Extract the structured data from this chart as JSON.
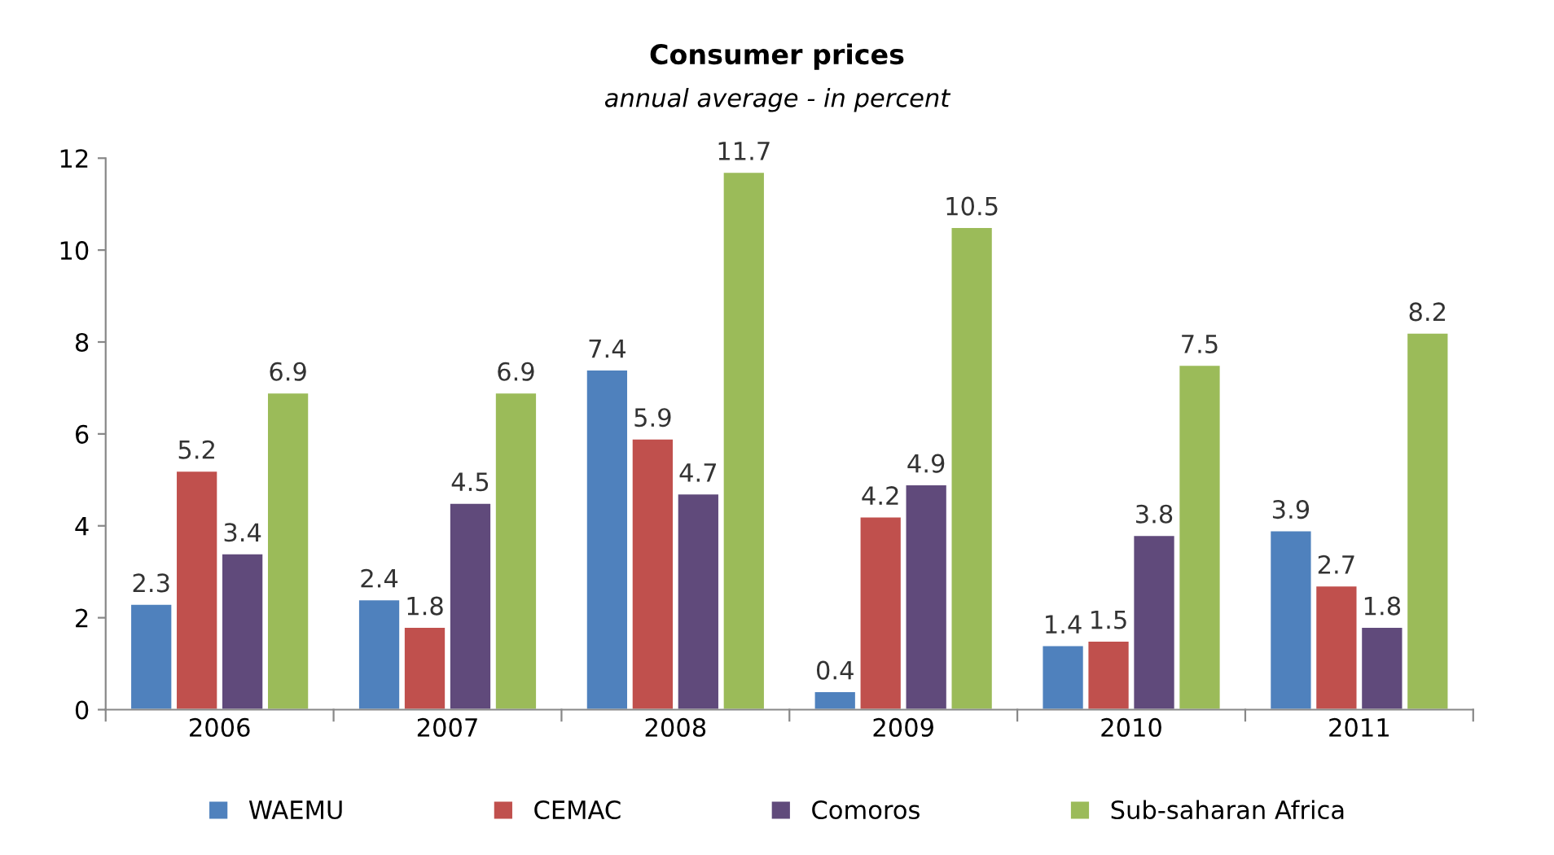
{
  "chart_data": {
    "type": "bar",
    "title": "Consumer prices",
    "subtitle": "annual average - in percent",
    "categories": [
      "2006",
      "2007",
      "2008",
      "2009",
      "2010",
      "2011"
    ],
    "series": [
      {
        "name": "WAEMU",
        "color": "#4f81bd",
        "values": [
          2.3,
          2.4,
          7.4,
          0.4,
          1.4,
          3.9
        ]
      },
      {
        "name": "CEMAC",
        "color": "#c0504d",
        "values": [
          5.2,
          1.8,
          5.9,
          4.2,
          1.5,
          2.7
        ]
      },
      {
        "name": "Comoros",
        "color": "#604a7b",
        "values": [
          3.4,
          4.5,
          4.7,
          4.9,
          3.8,
          1.8
        ]
      },
      {
        "name": "Sub-saharan Africa",
        "color": "#9bbb59",
        "values": [
          6.9,
          6.9,
          11.7,
          10.5,
          7.5,
          8.2
        ]
      }
    ],
    "ylim": [
      0,
      12
    ],
    "yticks": [
      0,
      2,
      4,
      6,
      8,
      10,
      12
    ],
    "grid": false,
    "legend": "bottom",
    "data_labels": true
  }
}
